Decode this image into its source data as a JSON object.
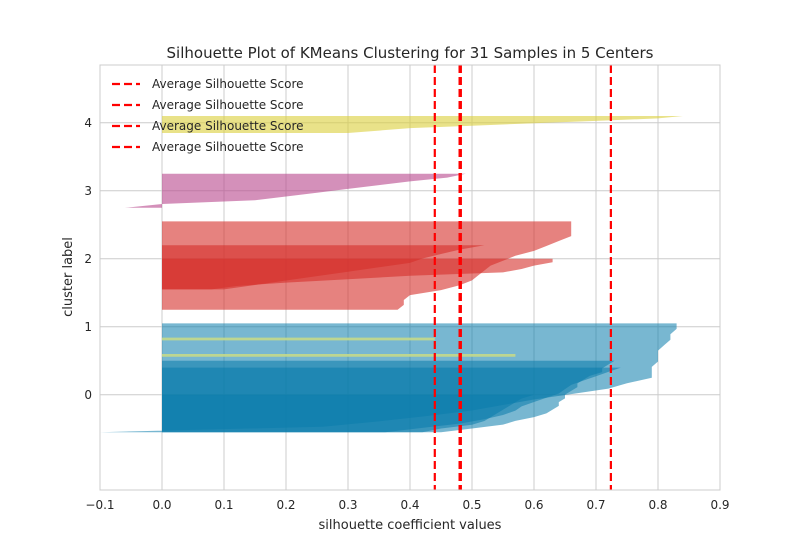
{
  "chart_data": {
    "type": "area",
    "title": "Silhouette Plot of KMeans Clustering for 31 Samples in 5 Centers",
    "xlabel": "silhouette coefficient values",
    "ylabel": "cluster label",
    "xlim": [
      -0.1,
      0.9
    ],
    "ylim": [
      -1.4,
      4.85
    ],
    "x_ticks": [
      "−0.1",
      "0.0",
      "0.1",
      "0.2",
      "0.3",
      "0.4",
      "0.5",
      "0.6",
      "0.7",
      "0.8",
      "0.9"
    ],
    "x_tick_values": [
      -0.1,
      0.0,
      0.1,
      0.2,
      0.3,
      0.4,
      0.5,
      0.6,
      0.7,
      0.8,
      0.9
    ],
    "y_ticks": [
      "0",
      "1",
      "2",
      "3",
      "4"
    ],
    "y_tick_values": [
      0,
      1,
      2,
      3,
      4
    ],
    "grid": true,
    "legend": {
      "placement": "top-left",
      "entries": [
        "Average Silhouette Score",
        "Average Silhouette Score",
        "Average Silhouette Score",
        "Average Silhouette Score"
      ]
    },
    "average_silhouette_scores": [
      0.44,
      0.48,
      0.482,
      0.724
    ],
    "average_line_color": "#ff0000",
    "series": [
      {
        "color": "#0a7bab",
        "opacity": 0.55,
        "y_low": -0.55,
        "y_high": 1.05,
        "values": [
          0.83,
          0.83,
          0.82,
          0.82,
          0.81,
          0.8,
          0.8,
          0.8,
          0.79,
          0.79,
          0.79,
          0.75,
          0.72,
          0.66,
          0.6,
          0.55,
          0.5,
          0.43,
          0.35,
          0.26,
          -0.1
        ]
      },
      {
        "color": "#0a7bab",
        "opacity": 0.55,
        "y_low": -0.55,
        "y_high": 0.5,
        "values": [
          0.73,
          0.72,
          0.71,
          0.71,
          0.69,
          0.68,
          0.67,
          0.67,
          0.66,
          0.65,
          0.65,
          0.64,
          0.64,
          0.63,
          0.62,
          0.6,
          0.57,
          0.55,
          0.5,
          0.45
        ]
      },
      {
        "color": "#0a7bab",
        "opacity": 0.55,
        "y_low": -0.55,
        "y_high": 0.4,
        "values": [
          0.74,
          0.72,
          0.7,
          0.68,
          0.66,
          0.65,
          0.64,
          0.62,
          0.6,
          0.58,
          0.57,
          0.55,
          0.52,
          0.48,
          0.42,
          0.36
        ]
      },
      {
        "color": "#0a7bab",
        "opacity": 0.55,
        "y_low": -0.55,
        "y_high": 0.0,
        "values": [
          0.6,
          0.58,
          0.57,
          0.56,
          0.55,
          0.54,
          0.53,
          0.52,
          0.5,
          0.45,
          0.42
        ]
      },
      {
        "color": "#c4d98a",
        "opacity": 0.9,
        "y_low": 0.8,
        "y_high": 0.84,
        "values": [
          0.44
        ]
      },
      {
        "color": "#c4d98a",
        "opacity": 0.9,
        "y_low": 0.56,
        "y_high": 0.6,
        "values": [
          0.57
        ]
      },
      {
        "color": "#d62f2a",
        "opacity": 0.6,
        "y_low": 1.25,
        "y_high": 2.55,
        "values": [
          0.66,
          0.66,
          0.66,
          0.66,
          0.64,
          0.62,
          0.6,
          0.57,
          0.55,
          0.53,
          0.52,
          0.51,
          0.5,
          0.48,
          0.45,
          0.4,
          0.39,
          0.39,
          0.38
        ]
      },
      {
        "color": "#d62f2a",
        "opacity": 0.6,
        "y_low": 1.55,
        "y_high": 2.2,
        "values": [
          0.52,
          0.48,
          0.45,
          0.42,
          0.4,
          0.35,
          0.3,
          0.25,
          0.2,
          0.15,
          0.1
        ]
      },
      {
        "color": "#d62f2a",
        "opacity": 0.6,
        "y_low": 1.55,
        "y_high": 2.0,
        "values": [
          0.63,
          0.63,
          0.6,
          0.58,
          0.55,
          0.4,
          0.3,
          0.2,
          0.12,
          0.08
        ]
      },
      {
        "color": "#b8468c",
        "opacity": 0.6,
        "y_low": 2.75,
        "y_high": 3.25,
        "values": [
          0.49,
          0.46,
          0.4,
          0.35,
          0.3,
          0.25,
          0.2,
          0.15,
          0.0,
          -0.06
        ]
      },
      {
        "color": "#dbcf3a",
        "opacity": 0.6,
        "y_low": 3.85,
        "y_high": 4.1,
        "values": [
          0.84,
          0.8,
          0.7,
          0.6,
          0.5,
          0.4,
          0.35,
          0.3
        ]
      }
    ]
  }
}
